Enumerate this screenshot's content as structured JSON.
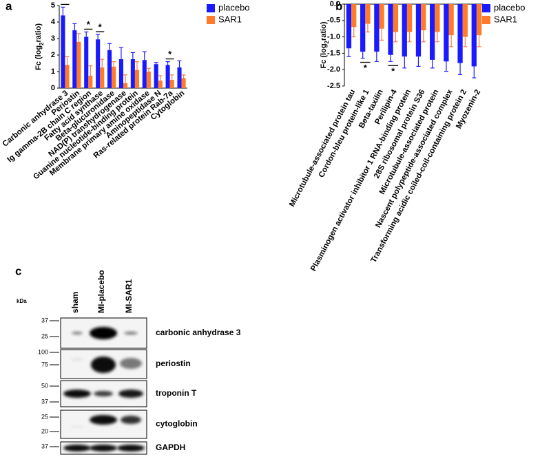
{
  "chart_data": [
    {
      "type": "bar",
      "panel": "a",
      "ylabel": [
        "Fc (log",
        "2",
        "ratio)"
      ],
      "categories": [
        "Carbonic anhydrase 3",
        "Periostin",
        "Ig gamma-2B chain C region",
        "Fatty acid synthase",
        "Beta-glucuronidase",
        "NAD(P) transhydrogenase",
        "Guanine nucleotide-binding protein",
        "Membrane primary amine oxidase",
        "Aminopeptidase N",
        "Ras-related protein Rab-7a",
        "Cytoglobin"
      ],
      "series": [
        {
          "name": "placebo",
          "color": "#1a1aff",
          "values": [
            4.4,
            3.5,
            3.1,
            2.95,
            2.3,
            1.75,
            1.75,
            1.7,
            1.45,
            1.4,
            1.25
          ],
          "errors": [
            0.5,
            0.4,
            0.3,
            0.3,
            0.4,
            0.7,
            0.4,
            0.5,
            0.1,
            0.2,
            0.4
          ]
        },
        {
          "name": "SAR1",
          "color": "#ff7a2a",
          "values": [
            1.4,
            2.8,
            0.75,
            1.25,
            1.3,
            0.3,
            1.1,
            1.0,
            0.45,
            0.5,
            0.6
          ],
          "errors": [
            0.5,
            0.5,
            0.6,
            0.5,
            0.3,
            0.5,
            0.5,
            0.2,
            0.3,
            0.3,
            0.2
          ]
        }
      ],
      "significance": [
        {
          "label": "*",
          "category": "Carbonic anhydrase 3"
        },
        {
          "label": "*",
          "category": "Ig gamma-2B chain C region"
        },
        {
          "label": "*",
          "category": "Fatty acid synthase"
        },
        {
          "label": "*",
          "category": "Ras-related protein Rab-7a"
        }
      ],
      "ylim": [
        0,
        5
      ],
      "yticks": [
        0,
        1,
        2,
        3,
        4,
        5
      ],
      "legend": "top-right"
    },
    {
      "type": "bar",
      "panel": "b",
      "ylabel": [
        "Fc (log",
        "2",
        "ratio)"
      ],
      "categories": [
        "Microtubule-associated protein tau",
        "Cordon-bleu protein-like 1",
        "Beta-taxilin",
        "Perilipin-4",
        "Plasminogen activator inhibitor 1 RNA-binding protein",
        "28S ribosomal protein S36",
        "Microtubule-associated protein",
        "Nascent polypeptide-associated complex",
        "Transforming acidic coiled-coil-containing protein 2",
        "Myozenin-2"
      ],
      "series": [
        {
          "name": "placebo",
          "color": "#1a1aff",
          "values": [
            -1.35,
            -1.45,
            -1.45,
            -1.55,
            -1.6,
            -1.6,
            -1.7,
            -1.75,
            -1.8,
            -1.9
          ],
          "errors": [
            0.25,
            0.2,
            0.3,
            0.2,
            0.35,
            0.3,
            0.25,
            0.3,
            0.35,
            0.35
          ]
        },
        {
          "name": "SAR1",
          "color": "#ff7a2a",
          "values": [
            -0.7,
            -0.6,
            -0.75,
            -0.85,
            -0.85,
            -0.8,
            -0.85,
            -0.95,
            -1.0,
            -0.95
          ],
          "errors": [
            0.3,
            0.25,
            0.35,
            0.3,
            0.3,
            0.35,
            0.3,
            0.35,
            0.3,
            0.35
          ]
        }
      ],
      "significance": [
        {
          "label": "*",
          "category": "Cordon-bleu protein-like 1"
        },
        {
          "label": "*",
          "category": "Perilipin-4"
        }
      ],
      "ylim": [
        -2.5,
        0
      ],
      "yticks": [
        {
          "value": 0,
          "label": "0.0"
        },
        -0.5,
        {
          "value": -1,
          "label": "-1.0"
        },
        -1.5,
        {
          "value": -2,
          "label": "-2.0"
        },
        -2.5
      ],
      "legend": "top-right"
    }
  ],
  "blot": {
    "panel": "c",
    "unit": "kDa",
    "lanes": [
      "sham",
      "MI-placebo",
      "MI-SAR1"
    ],
    "rows": [
      {
        "label": "carbonic anhydrase 3",
        "markers": [
          "37",
          "25"
        ]
      },
      {
        "label": "periostin",
        "markers": [
          "100",
          "75"
        ]
      },
      {
        "label": "troponin T",
        "markers": [
          "50",
          "37"
        ]
      },
      {
        "label": "cytoglobin",
        "markers": [
          "25",
          "20"
        ]
      },
      {
        "label": "GAPDH",
        "markers": [
          "37"
        ]
      }
    ]
  }
}
